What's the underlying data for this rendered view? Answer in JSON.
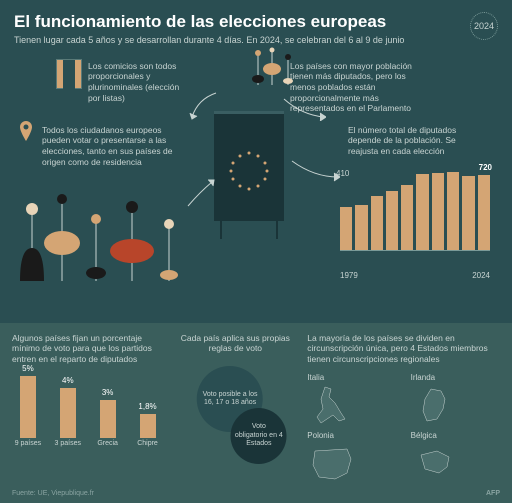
{
  "header": {
    "title": "El funcionamiento de las elecciones europeas",
    "subtitle": "Tienen lugar cada 5 años y se desarrollan durante\n4 días. En 2024, se celebran del 6 al 9 de junio",
    "year": "2024"
  },
  "colors": {
    "bg": "#2a4e52",
    "bottom_bg": "#3a5e5c",
    "accent": "#d4a574",
    "dark": "#1a3438",
    "text_light": "#c8d4d2",
    "star": "#d4a574"
  },
  "notes": {
    "n1": "Los comicios son todos proporcionales y plurinominales (elección por listas)",
    "n2": "Los países con mayor población tienen más diputados, pero los menos poblados están proporcionalmente más representados en el Parlamento",
    "n3": "Todos los ciudadanos europeos pueden votar o presentarse a las elecciones, tanto en sus países de origen como de residencia",
    "n4": "El número total de diputados depende de la población. Se reajusta en cada elección"
  },
  "seats_chart": {
    "type": "bar",
    "start_label": "410",
    "end_label": "720",
    "x_start": "1979",
    "x_end": "2024",
    "values": [
      410,
      434,
      518,
      567,
      626,
      732,
      736,
      751,
      705,
      720
    ],
    "ylim": [
      0,
      750
    ],
    "bar_color": "#d4a574"
  },
  "bottom": {
    "col1": {
      "text": "Algunos países fijan un porcentaje mínimo de voto para que los partidos entren en el reparto de diputados",
      "bars": [
        {
          "value": "5%",
          "label": "9 países",
          "h": 62
        },
        {
          "value": "4%",
          "label": "3 países",
          "h": 50
        },
        {
          "value": "3%",
          "label": "Grecia",
          "h": 38
        },
        {
          "value": "1,8%",
          "label": "Chipre",
          "h": 24
        }
      ]
    },
    "col2": {
      "text": "Cada país aplica sus propias reglas de voto",
      "circle1": "Voto posible a los 16, 17 o 18 años",
      "circle2": "Voto obligatorio en 4 Estados"
    },
    "col3": {
      "text": "La mayoría de los países se dividen en circunscripción única, pero 4 Estados miembros tienen circunscripciones regionales",
      "countries": [
        "Italia",
        "Irlanda",
        "Polonia",
        "Bélgica"
      ]
    }
  },
  "footer": {
    "source": "Fuente: UE, Viepublique.fr",
    "credit": "AFP"
  }
}
